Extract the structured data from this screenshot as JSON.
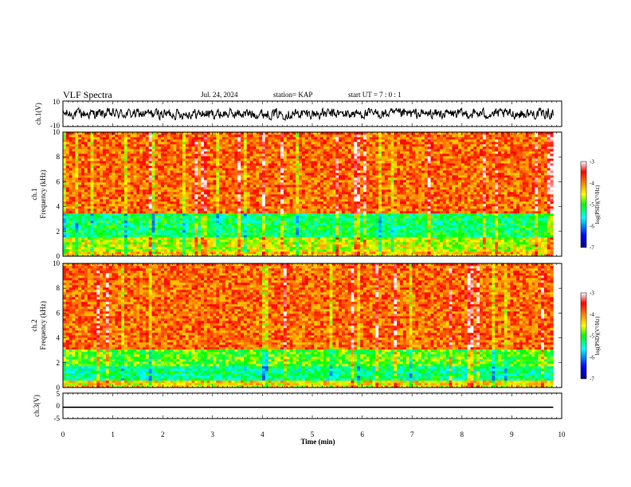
{
  "header": {
    "title": "VLF Spectra",
    "date": "Jul. 24, 2024",
    "station": "station= KAP",
    "start": "start  UT =   7 : 0  : 1"
  },
  "chart_data": [
    {
      "type": "line",
      "name": "ch1-waveform",
      "ylabel": "ch.1(V)",
      "ylim": [
        -10,
        10
      ],
      "ytick_labels": [
        "10",
        "-10"
      ],
      "xlim": [
        0,
        10
      ],
      "x_extent": [
        0,
        9.83
      ],
      "level_range_v": [
        -4,
        4
      ]
    },
    {
      "type": "heatmap",
      "name": "ch1-spectrogram",
      "ylabel": "ch.1 Frequency  (kHz)",
      "ylim": [
        0,
        10
      ],
      "ytick_labels": [
        "0",
        "2",
        "4",
        "6",
        "8",
        "10"
      ],
      "xlim": [
        0,
        10
      ],
      "x_extent": [
        0,
        9.83
      ],
      "colorbar": {
        "label": "log(PSD)(V²/Hz)",
        "range": [
          -7,
          -3
        ],
        "tick_labels": [
          "-3",
          "-4",
          "-5",
          "-6",
          "-7"
        ]
      },
      "bands": [
        {
          "from_khz": 0,
          "to_khz": 0.3,
          "log_psd": -4.3
        },
        {
          "from_khz": 0.3,
          "to_khz": 1.5,
          "log_psd": -4.6
        },
        {
          "from_khz": 1.5,
          "to_khz": 3.5,
          "log_psd": -5.2
        },
        {
          "from_khz": 3.5,
          "to_khz": 10,
          "log_psd": -3.9
        }
      ]
    },
    {
      "type": "heatmap",
      "name": "ch2-spectrogram",
      "ylabel": "ch.2 Frequency  (kHz)",
      "ylim": [
        0,
        10
      ],
      "ytick_labels": [
        "0",
        "2",
        "4",
        "6",
        "8",
        "10"
      ],
      "xlim": [
        0,
        10
      ],
      "x_extent": [
        0,
        9.83
      ],
      "colorbar": {
        "label": "log(PSD)(V²/Hz)",
        "range": [
          -7,
          -3
        ],
        "tick_labels": [
          "-3",
          "-4",
          "-5",
          "-6",
          "-7"
        ]
      },
      "bands": [
        {
          "from_khz": 0,
          "to_khz": 0.5,
          "log_psd": -4.4
        },
        {
          "from_khz": 0.5,
          "to_khz": 1.8,
          "log_psd": -5.3
        },
        {
          "from_khz": 1.8,
          "to_khz": 3.0,
          "log_psd": -4.9
        },
        {
          "from_khz": 3.0,
          "to_khz": 10,
          "log_psd": -3.9
        }
      ]
    },
    {
      "type": "line",
      "name": "ch3-waveform",
      "ylabel": "ch.3(V)",
      "ylim": [
        -5,
        5
      ],
      "ytick_labels": [
        "5",
        "0",
        "-5"
      ],
      "xlim": [
        0,
        10
      ],
      "x_extent": [
        0,
        9.83
      ],
      "level_range_v": [
        -0.8,
        -0.3
      ]
    }
  ],
  "xaxis": {
    "label": "Time  (min)",
    "tick_labels": [
      "0",
      "1",
      "2",
      "3",
      "4",
      "5",
      "6",
      "7",
      "8",
      "9",
      "10"
    ]
  },
  "colors": {
    "scale": [
      "#000080",
      "#0000ff",
      "#00ffff",
      "#00ff00",
      "#ffff00",
      "#ff8000",
      "#ff0000",
      "#ffffff"
    ]
  }
}
